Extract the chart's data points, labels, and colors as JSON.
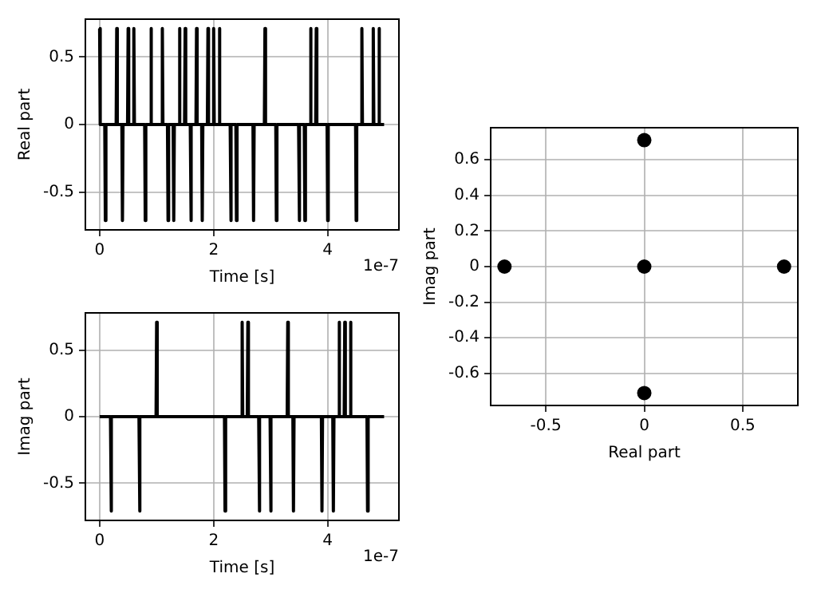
{
  "chart_data": [
    {
      "type": "line",
      "xlabel": "Time [s]",
      "ylabel": "Real part",
      "annotations": [
        "1e-7"
      ],
      "grid": true,
      "xlim": [
        -0.25,
        5.25
      ],
      "xticks": [
        0,
        2,
        4
      ],
      "ylim": [
        -0.78,
        0.78
      ],
      "yticks": [
        -0.5,
        0,
        0.5
      ],
      "series": [
        {
          "color": "#000000",
          "x": [
            0,
            0.01,
            0.09,
            0.1,
            0.11,
            0.29,
            0.3,
            0.31,
            0.39,
            0.4,
            0.41,
            0.49,
            0.5,
            0.51,
            0.59,
            0.6,
            0.61,
            0.79,
            0.8,
            0.81,
            0.89,
            0.9,
            0.91,
            1.09,
            1.1,
            1.11,
            1.19,
            1.2,
            1.21,
            1.29,
            1.3,
            1.31,
            1.39,
            1.4,
            1.41,
            1.49,
            1.5,
            1.51,
            1.59,
            1.6,
            1.61,
            1.69,
            1.7,
            1.71,
            1.79,
            1.8,
            1.81,
            1.89,
            1.9,
            1.91,
            1.99,
            2,
            2.01,
            2.09,
            2.1,
            2.11,
            2.29,
            2.3,
            2.31,
            2.39,
            2.4,
            2.41,
            2.69,
            2.7,
            2.71,
            2.89,
            2.9,
            2.91,
            3.09,
            3.1,
            3.11,
            3.49,
            3.5,
            3.51,
            3.59,
            3.6,
            3.61,
            3.69,
            3.7,
            3.71,
            3.79,
            3.8,
            3.81,
            3.99,
            4,
            4.01,
            4.49,
            4.5,
            4.51,
            4.59,
            4.6,
            4.61,
            4.79,
            4.8,
            4.81,
            4.89,
            4.9,
            4.91,
            4.99
          ],
          "values": [
            0.71,
            0,
            0,
            -0.71,
            0,
            0,
            0.71,
            0,
            0,
            -0.71,
            0,
            0,
            0.71,
            0,
            0,
            0.71,
            0,
            0,
            -0.71,
            0,
            0,
            0.71,
            0,
            0,
            0.71,
            0,
            0,
            -0.71,
            0,
            0,
            -0.71,
            0,
            0,
            0.71,
            0,
            0,
            0.71,
            0,
            0,
            -0.71,
            0,
            0,
            0.71,
            0,
            0,
            -0.71,
            0,
            0,
            0.71,
            0,
            0,
            0.71,
            0,
            0,
            0.71,
            0,
            0,
            -0.71,
            0,
            0,
            -0.71,
            0,
            0,
            -0.71,
            0,
            0,
            0.71,
            0,
            0,
            -0.71,
            0,
            0,
            -0.71,
            0,
            0,
            -0.71,
            0,
            0,
            0.71,
            0,
            0,
            0.71,
            0,
            0,
            -0.71,
            0,
            0,
            -0.71,
            0,
            0,
            0.71,
            0,
            0,
            0.71,
            0,
            0,
            0.71,
            0,
            0
          ]
        }
      ]
    },
    {
      "type": "line",
      "xlabel": "Time [s]",
      "ylabel": "Imag part",
      "annotations": [
        "1e-7"
      ],
      "grid": true,
      "xlim": [
        -0.25,
        5.25
      ],
      "xticks": [
        0,
        2,
        4
      ],
      "ylim": [
        -0.78,
        0.78
      ],
      "yticks": [
        -0.5,
        0,
        0.5
      ],
      "series": [
        {
          "color": "#000000",
          "x": [
            0,
            0.19,
            0.2,
            0.21,
            0.69,
            0.7,
            0.71,
            0.99,
            1,
            1.01,
            2.19,
            2.2,
            2.21,
            2.49,
            2.5,
            2.51,
            2.59,
            2.6,
            2.61,
            2.79,
            2.8,
            2.81,
            2.99,
            3,
            3.01,
            3.29,
            3.3,
            3.31,
            3.39,
            3.4,
            3.41,
            3.89,
            3.9,
            3.91,
            4.09,
            4.1,
            4.11,
            4.19,
            4.2,
            4.21,
            4.29,
            4.3,
            4.31,
            4.39,
            4.4,
            4.41,
            4.69,
            4.7,
            4.71,
            4.99
          ],
          "values": [
            0,
            0,
            -0.71,
            0,
            0,
            -0.71,
            0,
            0,
            0.71,
            0,
            0,
            -0.71,
            0,
            0,
            0.71,
            0,
            0,
            0.71,
            0,
            0,
            -0.71,
            0,
            0,
            -0.71,
            0,
            0,
            0.71,
            0,
            0,
            -0.71,
            0,
            0,
            -0.71,
            0,
            0,
            -0.71,
            0,
            0,
            0.71,
            0,
            0,
            0.71,
            0,
            0,
            0.71,
            0,
            0,
            -0.71,
            0,
            0
          ]
        }
      ]
    },
    {
      "type": "scatter",
      "xlabel": "Real part",
      "ylabel": "Imag part",
      "grid": true,
      "marker": "circle",
      "xlim": [
        -0.78,
        0.78
      ],
      "xticks": [
        -0.5,
        0,
        0.5
      ],
      "ylim": [
        -0.78,
        0.78
      ],
      "yticks": [
        -0.6,
        -0.4,
        -0.2,
        0,
        0.2,
        0.4,
        0.6
      ],
      "series": [
        {
          "color": "#000000",
          "x": [
            0.71,
            -0.71,
            0,
            0,
            0
          ],
          "values": [
            0,
            0,
            0.71,
            -0.71,
            0
          ]
        }
      ]
    }
  ]
}
